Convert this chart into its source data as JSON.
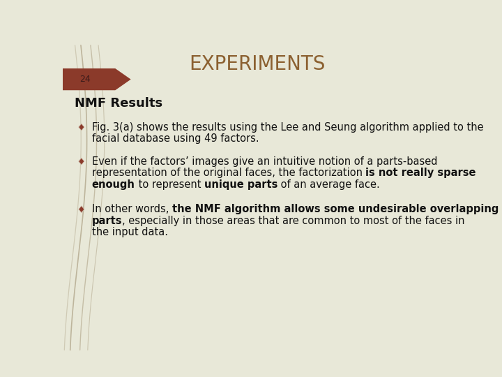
{
  "title": "EXPERIMENTS",
  "title_color": "#8B6030",
  "title_fontsize": 20,
  "slide_number": "24",
  "slide_num_bg": "#8B3A2A",
  "slide_num_color": "#3a1a1a",
  "bg_color": "#E8E8D8",
  "heading": "NMF Results",
  "heading_fontsize": 13,
  "heading_color": "#111111",
  "bullet_color": "#8B3A2A",
  "curve_color": "#9B8B6B",
  "text_color": "#111111",
  "body_fontsize": 10.5
}
